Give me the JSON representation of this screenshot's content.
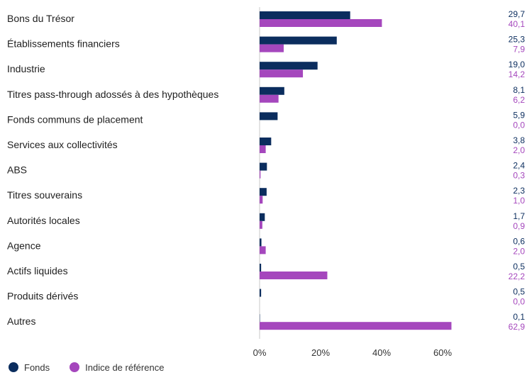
{
  "chart_data": {
    "type": "bar",
    "orientation": "horizontal",
    "categories": [
      "Bons du Trésor",
      "Établissements financiers",
      "Industrie",
      "Titres pass-through adossés à des hypothèques",
      "Fonds communs de placement",
      "Services aux collectivités",
      "ABS",
      "Titres souverains",
      "Autorités locales",
      "Agence",
      "Actifs liquides",
      "Produits dérivés",
      "Autres"
    ],
    "series": [
      {
        "name": "Fonds",
        "color": "#0b2d5e",
        "values": [
          29.7,
          25.3,
          19.0,
          8.1,
          5.9,
          3.8,
          2.4,
          2.3,
          1.7,
          0.6,
          0.5,
          0.5,
          0.1
        ],
        "labels": [
          "29,7",
          "25,3",
          "19,0",
          "8,1",
          "5,9",
          "3,8",
          "2,4",
          "2,3",
          "1,7",
          "0,6",
          "0,5",
          "0,5",
          "0,1"
        ]
      },
      {
        "name": "Indice de référence",
        "color": "#a547bd",
        "values": [
          40.1,
          7.9,
          14.2,
          6.2,
          0.0,
          2.0,
          0.3,
          1.0,
          0.9,
          2.0,
          22.2,
          0.0,
          62.9
        ],
        "labels": [
          "40,1",
          "7,9",
          "14,2",
          "6,2",
          "0,0",
          "2,0",
          "0,3",
          "1,0",
          "0,9",
          "2,0",
          "22,2",
          "0,0",
          "62,9"
        ]
      }
    ],
    "xlim": [
      0,
      80
    ],
    "xticks": [
      0,
      20,
      40,
      60
    ],
    "xtick_labels": [
      "0%",
      "20%",
      "40%",
      "60%"
    ],
    "grid": false,
    "legend_position": "bottom-left"
  }
}
